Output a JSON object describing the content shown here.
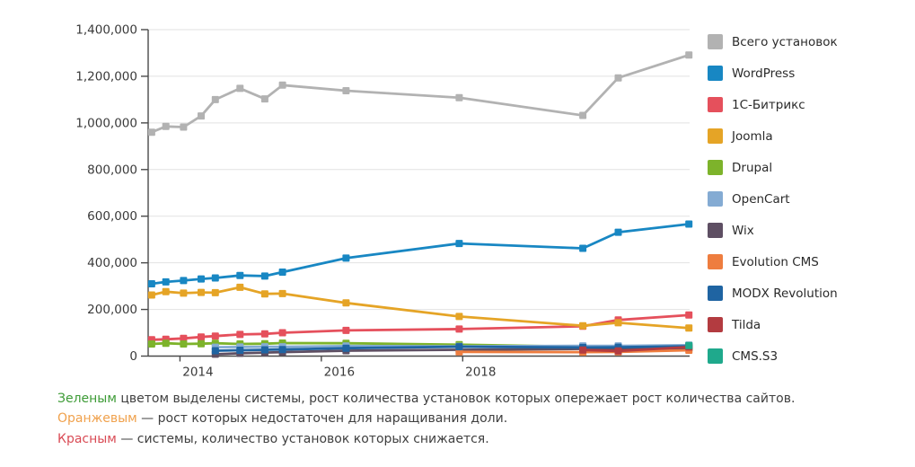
{
  "chart_data": {
    "type": "line",
    "title": "",
    "xlabel": "",
    "ylabel": "",
    "grid": "horizontal",
    "legend_position": "right",
    "x_domain": [
      2013.55,
      2021.21
    ],
    "y_domain": [
      0,
      1400000
    ],
    "x_ticks": [
      {
        "v": 2014,
        "label": "2014"
      },
      {
        "v": 2016,
        "label": "2016"
      },
      {
        "v": 2018,
        "label": "2018"
      }
    ],
    "y_ticks": [
      {
        "v": 0,
        "label": "0"
      },
      {
        "v": 200000,
        "label": "200,000"
      },
      {
        "v": 400000,
        "label": "400,000"
      },
      {
        "v": 600000,
        "label": "600,000"
      },
      {
        "v": 800000,
        "label": "800,000"
      },
      {
        "v": 1000000,
        "label": "1,000,000"
      },
      {
        "v": 1200000,
        "label": "1,200,000"
      },
      {
        "v": 1400000,
        "label": "1,400,000"
      }
    ],
    "x": [
      2013.6,
      2013.8,
      2014.05,
      2014.3,
      2014.5,
      2014.85,
      2015.2,
      2015.45,
      2016.35,
      2017.95,
      2019.7,
      2020.2,
      2021.2
    ],
    "series": [
      {
        "id": "total",
        "name": "Всего установок",
        "color": "#b2b2b2",
        "values": [
          960000,
          985000,
          982000,
          1030000,
          1100000,
          1148000,
          1103000,
          1162000,
          1138000,
          1108000,
          1032000,
          1193000,
          1291000
        ]
      },
      {
        "id": "wordpress",
        "name": "WordPress",
        "color": "#1887c3",
        "values": [
          310000,
          318000,
          324000,
          331000,
          335000,
          346000,
          343000,
          360000,
          420000,
          483000,
          462000,
          531000,
          566000
        ]
      },
      {
        "id": "bitrix",
        "name": "1С-Битрикс",
        "color": "#e5505c",
        "values": [
          70000,
          72000,
          76000,
          82000,
          86000,
          93000,
          95000,
          100000,
          110000,
          116000,
          128000,
          155000,
          176000
        ]
      },
      {
        "id": "joomla",
        "name": "Joomla",
        "color": "#e5a426",
        "values": [
          262000,
          276000,
          270000,
          273000,
          272000,
          295000,
          267000,
          268000,
          228000,
          170000,
          130000,
          143000,
          120000
        ]
      },
      {
        "id": "drupal",
        "name": "Drupal",
        "color": "#7db32b",
        "values": [
          52000,
          55000,
          52000,
          53000,
          55000,
          52000,
          53000,
          56000,
          55000,
          49000,
          40000,
          38000,
          36000
        ]
      },
      {
        "id": "opencart",
        "name": "OpenCart",
        "color": "#84abd3",
        "values": [
          null,
          null,
          null,
          null,
          38000,
          39000,
          40000,
          40000,
          43000,
          42000,
          44000,
          44000,
          47000
        ]
      },
      {
        "id": "wix",
        "name": "Wix",
        "color": "#5e4f63",
        "values": [
          null,
          null,
          null,
          null,
          8000,
          12000,
          15000,
          17000,
          23000,
          27000,
          31000,
          32000,
          33000
        ]
      },
      {
        "id": "evolution-cms",
        "name": "Evolution CMS",
        "color": "#ee7d3f",
        "values": [
          null,
          null,
          null,
          null,
          null,
          null,
          null,
          null,
          null,
          18000,
          17000,
          18000,
          25000
        ]
      },
      {
        "id": "modx-revolution",
        "name": "MODX Revolution",
        "color": "#1f64a2",
        "values": [
          null,
          null,
          null,
          null,
          23000,
          25000,
          27000,
          28000,
          34000,
          40000,
          37000,
          38000,
          42000
        ]
      },
      {
        "id": "tilda",
        "name": "Tilda",
        "color": "#b33b40",
        "values": [
          null,
          null,
          null,
          null,
          null,
          null,
          null,
          null,
          null,
          null,
          26000,
          22000,
          39000
        ]
      },
      {
        "id": "cms-s3",
        "name": "CMS.S3",
        "color": "#1fa98c",
        "values": [
          null,
          null,
          null,
          null,
          null,
          null,
          null,
          null,
          null,
          null,
          null,
          null,
          45000
        ]
      }
    ]
  },
  "notes": [
    {
      "id": "green",
      "lead": "Зеленым",
      "lead_color": "#3d9b36",
      "text": "цветом выделены системы, рост количества установок которых опережает рост количества сайтов."
    },
    {
      "id": "orange",
      "lead": "Оранжевым",
      "lead_color": "#f0a14c",
      "text": "— рост которых недостаточен для наращивания доли."
    },
    {
      "id": "red",
      "lead": "Красным",
      "lead_color": "#d94b55",
      "text": "— системы, количество установок которых снижается."
    }
  ],
  "style": {
    "grid_color": "#e2e2e2",
    "axis_color": "#4a4a4a",
    "tick_text_color": "#3a3a3a"
  }
}
